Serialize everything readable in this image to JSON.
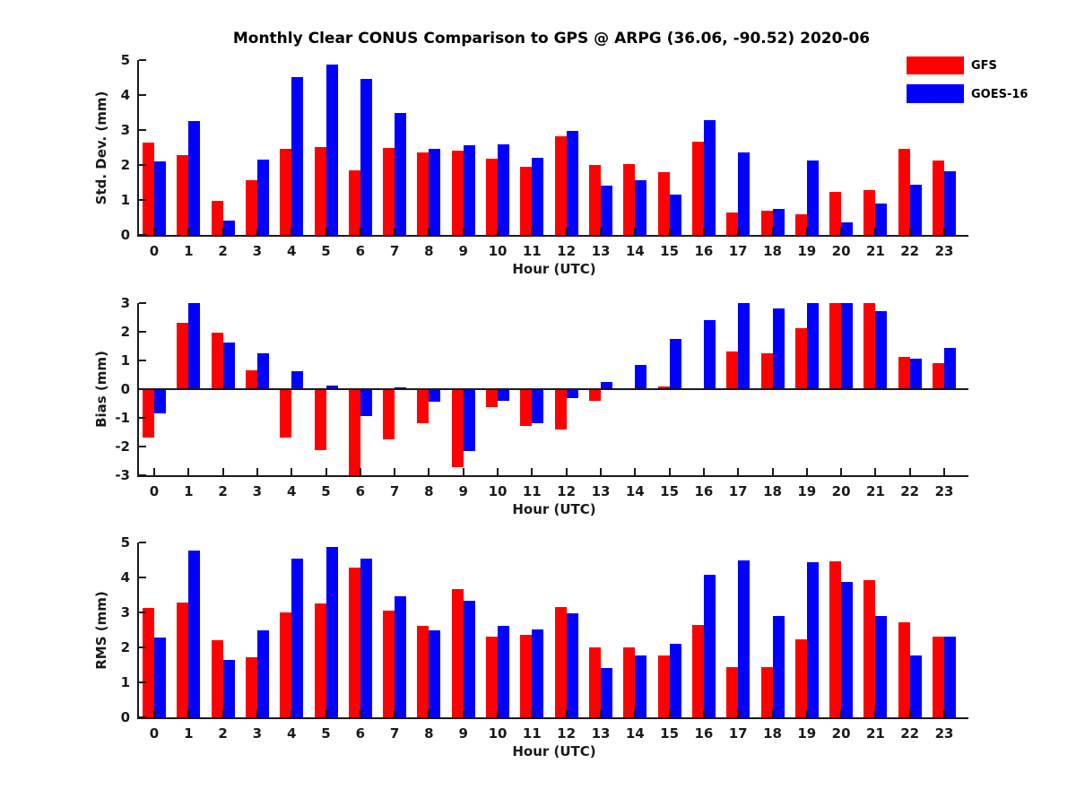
{
  "title": "Monthly Clear CONUS Comparison to GPS @ ARPG (36.06, -90.52) 2020-06",
  "legend": {
    "position": "top-right",
    "items": [
      {
        "label": "GFS",
        "color": "#ff0000"
      },
      {
        "label": "GOES-16",
        "color": "#0000ff"
      }
    ]
  },
  "colors": {
    "gfs": "#ff0000",
    "goes16": "#0000ff",
    "axis": "#1a1a1a"
  },
  "chart_data": [
    {
      "type": "bar",
      "title": "",
      "xlabel": "Hour (UTC)",
      "ylabel": "Std. Dev. (mm)",
      "ylim": [
        0,
        5
      ],
      "yticks": [
        0,
        1,
        2,
        3,
        4,
        5
      ],
      "grid": false,
      "categories": [
        0,
        1,
        2,
        3,
        4,
        5,
        6,
        7,
        8,
        9,
        10,
        11,
        12,
        13,
        14,
        15,
        16,
        17,
        18,
        19,
        20,
        21,
        22,
        23
      ],
      "series": [
        {
          "name": "GFS",
          "color": "#ff0000",
          "values": [
            2.63,
            2.28,
            0.97,
            1.56,
            2.45,
            2.51,
            1.85,
            2.5,
            2.36,
            2.42,
            2.18,
            1.95,
            2.83,
            2.0,
            2.03,
            1.8,
            2.66,
            0.63,
            0.7,
            0.6,
            1.22,
            1.28,
            2.46,
            2.12
          ]
        },
        {
          "name": "GOES-16",
          "color": "#0000ff",
          "values": [
            2.1,
            3.25,
            0.41,
            2.15,
            4.51,
            4.87,
            4.46,
            3.48,
            2.46,
            2.57,
            2.6,
            2.2,
            2.97,
            1.42,
            1.57,
            1.16,
            3.28,
            2.36,
            0.75,
            2.14,
            0.36,
            0.91,
            1.43,
            1.83
          ]
        }
      ]
    },
    {
      "type": "bar",
      "title": "",
      "xlabel": "Hour (UTC)",
      "ylabel": "Bias (mm)",
      "ylim": [
        -3,
        3
      ],
      "yticks": [
        -3,
        -2,
        -1,
        0,
        1,
        2,
        3
      ],
      "grid": false,
      "categories": [
        0,
        1,
        2,
        3,
        4,
        5,
        6,
        7,
        8,
        9,
        10,
        11,
        12,
        13,
        14,
        15,
        16,
        17,
        18,
        19,
        20,
        21,
        22,
        23
      ],
      "series": [
        {
          "name": "GFS",
          "color": "#ff0000",
          "values": [
            -1.68,
            2.3,
            1.97,
            0.67,
            -1.7,
            -2.12,
            -3.0,
            -1.75,
            -1.2,
            -2.72,
            -0.63,
            -1.28,
            -1.4,
            -0.4,
            0.0,
            0.1,
            0.0,
            1.31,
            1.25,
            2.14,
            3.0,
            3.0,
            1.12,
            0.92
          ]
        },
        {
          "name": "GOES-16",
          "color": "#0000ff",
          "values": [
            -0.84,
            3.0,
            1.62,
            1.25,
            0.62,
            0.14,
            -0.93,
            0.06,
            -0.45,
            -2.16,
            -0.4,
            -1.18,
            -0.3,
            0.25,
            0.83,
            1.76,
            2.4,
            3.0,
            2.82,
            3.0,
            3.0,
            2.73,
            1.06,
            1.43
          ]
        }
      ]
    },
    {
      "type": "bar",
      "title": "",
      "xlabel": "Hour (UTC)",
      "ylabel": "RMS (mm)",
      "ylim": [
        0,
        5
      ],
      "yticks": [
        0,
        1,
        2,
        3,
        4,
        5
      ],
      "grid": false,
      "categories": [
        0,
        1,
        2,
        3,
        4,
        5,
        6,
        7,
        8,
        9,
        10,
        11,
        12,
        13,
        14,
        15,
        16,
        17,
        18,
        19,
        20,
        21,
        22,
        23
      ],
      "series": [
        {
          "name": "GFS",
          "color": "#ff0000",
          "values": [
            3.12,
            3.28,
            2.2,
            1.71,
            3.0,
            3.27,
            4.29,
            3.06,
            2.62,
            3.66,
            2.3,
            2.35,
            3.16,
            2.01,
            2.01,
            1.78,
            2.65,
            1.45,
            1.43,
            2.23,
            4.47,
            3.92,
            2.71,
            2.3
          ]
        },
        {
          "name": "GOES-16",
          "color": "#0000ff",
          "values": [
            2.28,
            4.77,
            1.65,
            2.5,
            4.53,
            4.87,
            4.53,
            3.47,
            2.5,
            3.34,
            2.62,
            2.52,
            2.98,
            1.42,
            1.77,
            2.1,
            4.07,
            4.5,
            2.9,
            4.44,
            3.87,
            2.9,
            1.78,
            2.3
          ]
        }
      ]
    }
  ]
}
